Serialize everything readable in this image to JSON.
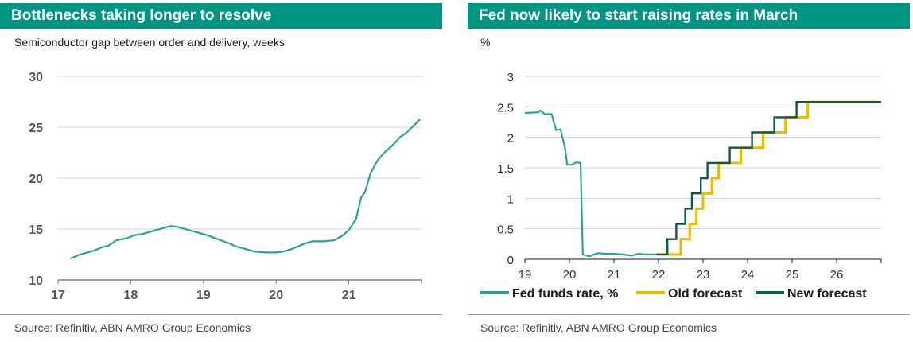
{
  "left": {
    "title": "Bottlenecks taking longer to resolve",
    "subtitle": "Semiconductor gap between order and delivery, weeks",
    "source": "Source: Refinitiv, ABN AMRO Group Economics"
  },
  "right": {
    "title": "Fed now likely to start raising rates in March",
    "subtitle": "%",
    "source": "Source: Refinitiv, ABN AMRO Group Economics"
  },
  "colors": {
    "title_bg": "#009483",
    "fed_line": "#2ea28f",
    "old_forecast": "#f2b800",
    "new_forecast": "#0f5a4d",
    "grid": "#d3d3d3",
    "axis": "#7f7f7f"
  },
  "chart_data": [
    {
      "type": "line",
      "title": "Bottlenecks taking longer to resolve",
      "ylabel": "Semiconductor gap between order and delivery, weeks",
      "xlim": [
        17,
        22
      ],
      "ylim": [
        10,
        30
      ],
      "yticks": [
        "10",
        "15",
        "20",
        "25",
        "30"
      ],
      "xticks": [
        "17",
        "18",
        "19",
        "20",
        "21"
      ],
      "grid": true,
      "series": [
        {
          "values": [
            [
              17.17,
              12.1
            ],
            [
              17.3,
              12.5
            ],
            [
              17.4,
              12.7
            ],
            [
              17.5,
              12.9
            ],
            [
              17.6,
              13.2
            ],
            [
              17.7,
              13.4
            ],
            [
              17.8,
              13.9
            ],
            [
              17.95,
              14.1
            ],
            [
              18.05,
              14.4
            ],
            [
              18.15,
              14.5
            ],
            [
              18.3,
              14.8
            ],
            [
              18.45,
              15.1
            ],
            [
              18.55,
              15.3
            ],
            [
              18.65,
              15.2
            ],
            [
              18.8,
              14.9
            ],
            [
              18.9,
              14.7
            ],
            [
              19.05,
              14.4
            ],
            [
              19.2,
              14.0
            ],
            [
              19.35,
              13.6
            ],
            [
              19.45,
              13.3
            ],
            [
              19.55,
              13.1
            ],
            [
              19.7,
              12.8
            ],
            [
              19.85,
              12.7
            ],
            [
              20.0,
              12.7
            ],
            [
              20.1,
              12.8
            ],
            [
              20.2,
              13.0
            ],
            [
              20.3,
              13.3
            ],
            [
              20.4,
              13.6
            ],
            [
              20.5,
              13.8
            ],
            [
              20.65,
              13.8
            ],
            [
              20.8,
              13.9
            ],
            [
              20.9,
              14.3
            ],
            [
              21.0,
              14.9
            ],
            [
              21.1,
              16.0
            ],
            [
              21.17,
              18.1
            ],
            [
              21.22,
              18.6
            ],
            [
              21.3,
              20.5
            ],
            [
              21.4,
              21.8
            ],
            [
              21.5,
              22.6
            ],
            [
              21.6,
              23.2
            ],
            [
              21.7,
              24.0
            ],
            [
              21.8,
              24.5
            ],
            [
              21.9,
              25.2
            ],
            [
              21.98,
              25.8
            ]
          ]
        }
      ]
    },
    {
      "type": "line",
      "title": "Fed now likely to start raising rates in March",
      "ylabel": "%",
      "xlim": [
        19,
        27
      ],
      "ylim": [
        0,
        3
      ],
      "yticks": [
        "0",
        "0.5",
        "1",
        "1.5",
        "2",
        "2.5",
        "3"
      ],
      "xticks": [
        "19",
        "20",
        "21",
        "22",
        "23",
        "24",
        "25",
        "26"
      ],
      "grid": true,
      "legend_position": "bottom",
      "series": [
        {
          "name": "Fed funds rate, %",
          "values": [
            [
              19.0,
              2.4
            ],
            [
              19.3,
              2.41
            ],
            [
              19.35,
              2.44
            ],
            [
              19.45,
              2.38
            ],
            [
              19.6,
              2.38
            ],
            [
              19.7,
              2.12
            ],
            [
              19.8,
              2.13
            ],
            [
              19.9,
              1.83
            ],
            [
              19.95,
              1.55
            ],
            [
              20.05,
              1.55
            ],
            [
              20.15,
              1.59
            ],
            [
              20.25,
              1.58
            ],
            [
              20.3,
              0.08
            ],
            [
              20.45,
              0.05
            ],
            [
              20.55,
              0.08
            ],
            [
              20.65,
              0.1
            ],
            [
              20.8,
              0.09
            ],
            [
              21.0,
              0.09
            ],
            [
              21.2,
              0.08
            ],
            [
              21.4,
              0.06
            ],
            [
              21.55,
              0.09
            ],
            [
              21.7,
              0.08
            ],
            [
              21.85,
              0.08
            ],
            [
              21.95,
              0.08
            ]
          ]
        },
        {
          "name": "Old forecast",
          "values": [
            [
              21.95,
              0.08
            ],
            [
              22.5,
              0.08
            ],
            [
              22.5,
              0.33
            ],
            [
              22.7,
              0.33
            ],
            [
              22.7,
              0.58
            ],
            [
              22.85,
              0.58
            ],
            [
              22.85,
              0.83
            ],
            [
              23.0,
              0.83
            ],
            [
              23.0,
              1.08
            ],
            [
              23.2,
              1.08
            ],
            [
              23.2,
              1.33
            ],
            [
              23.35,
              1.33
            ],
            [
              23.35,
              1.58
            ],
            [
              23.85,
              1.58
            ],
            [
              23.85,
              1.83
            ],
            [
              24.35,
              1.83
            ],
            [
              24.35,
              2.08
            ],
            [
              24.85,
              2.08
            ],
            [
              24.85,
              2.33
            ],
            [
              25.35,
              2.33
            ],
            [
              25.35,
              2.58
            ],
            [
              27.0,
              2.58
            ]
          ]
        },
        {
          "name": "New forecast",
          "values": [
            [
              21.95,
              0.08
            ],
            [
              22.2,
              0.08
            ],
            [
              22.2,
              0.33
            ],
            [
              22.4,
              0.33
            ],
            [
              22.4,
              0.58
            ],
            [
              22.6,
              0.58
            ],
            [
              22.6,
              0.83
            ],
            [
              22.75,
              0.83
            ],
            [
              22.75,
              1.08
            ],
            [
              22.95,
              1.08
            ],
            [
              22.95,
              1.33
            ],
            [
              23.1,
              1.33
            ],
            [
              23.1,
              1.58
            ],
            [
              23.6,
              1.58
            ],
            [
              23.6,
              1.83
            ],
            [
              24.1,
              1.83
            ],
            [
              24.1,
              2.08
            ],
            [
              24.6,
              2.08
            ],
            [
              24.6,
              2.33
            ],
            [
              25.1,
              2.33
            ],
            [
              25.1,
              2.58
            ],
            [
              27.0,
              2.58
            ]
          ]
        }
      ]
    }
  ]
}
